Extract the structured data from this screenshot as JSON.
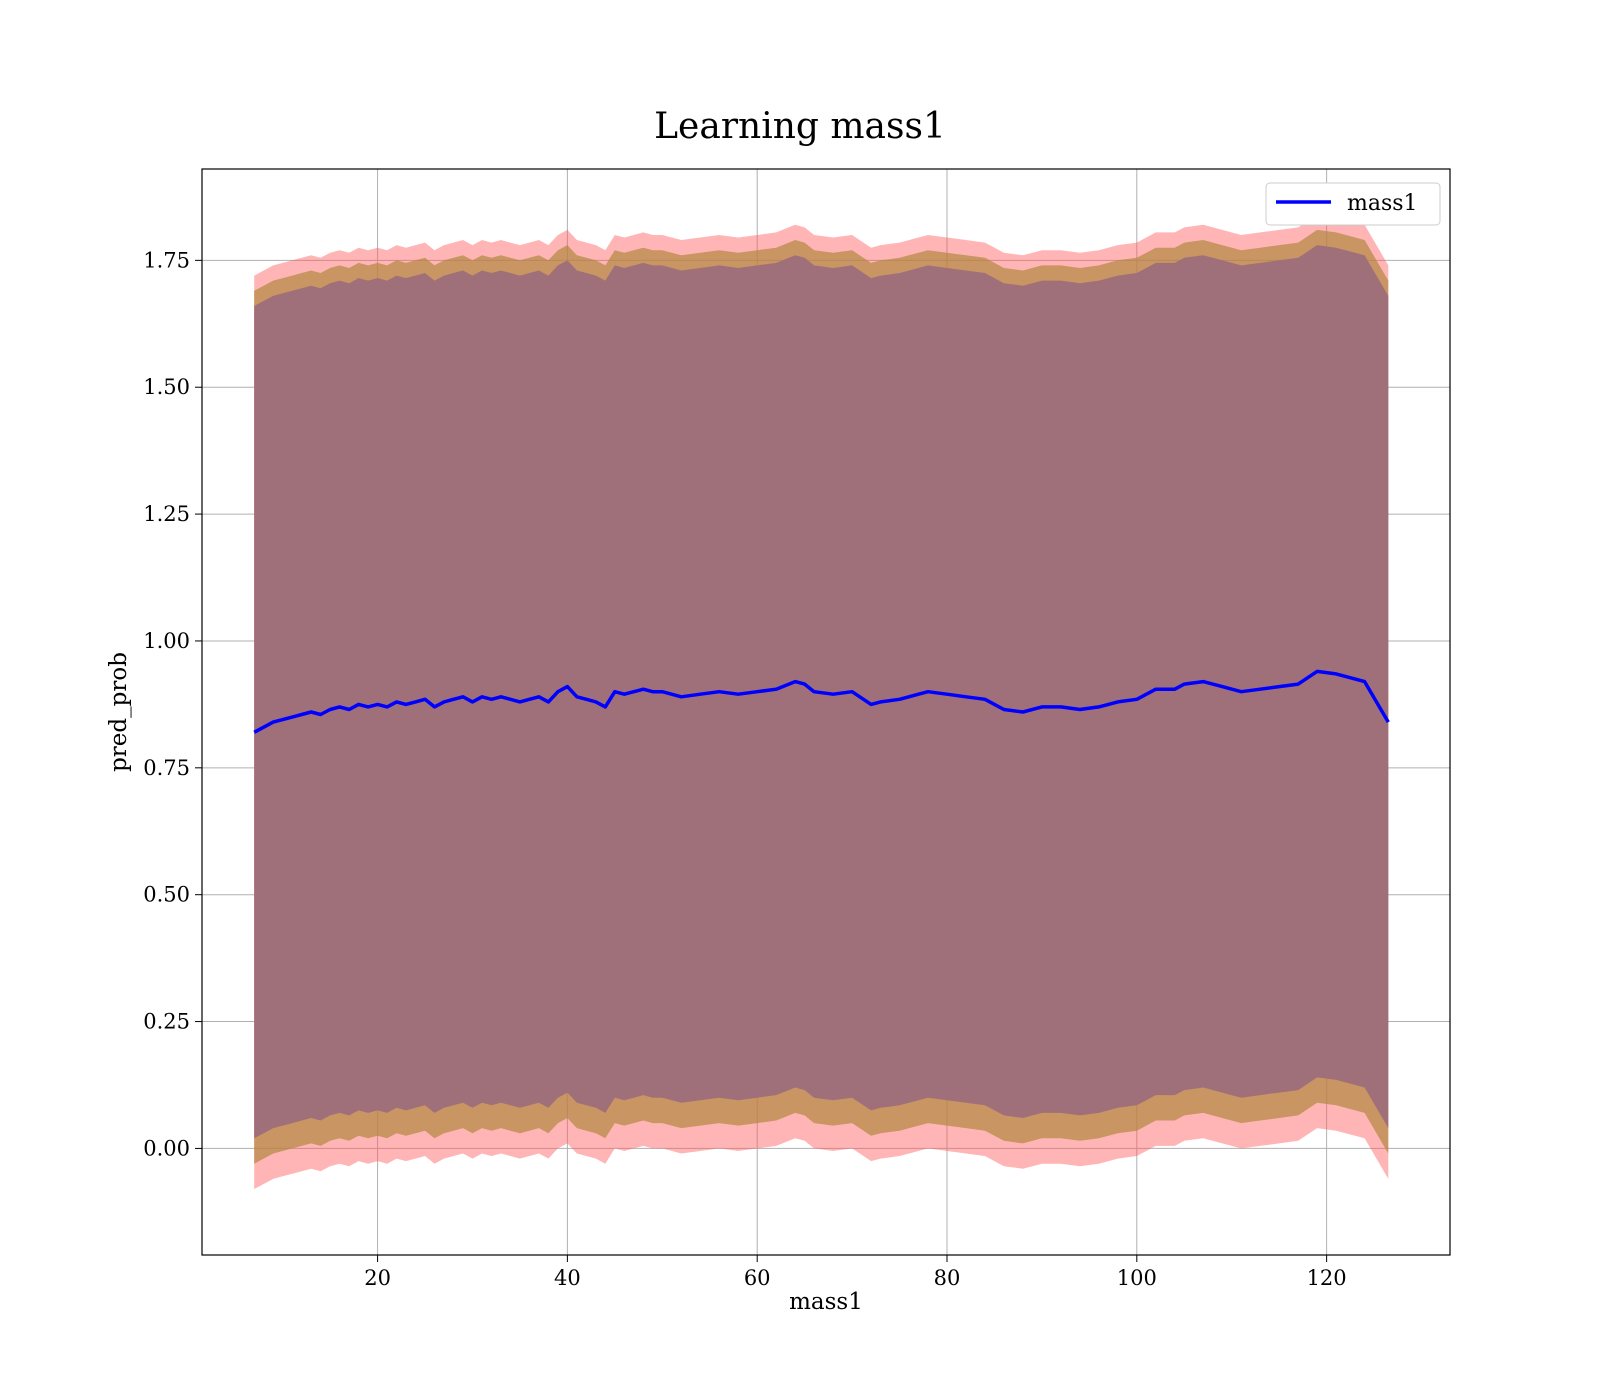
{
  "chart_data": {
    "type": "line",
    "title": "Learning mass1",
    "xlabel": "mass1",
    "ylabel": "pred_prob",
    "xlim": [
      1.5,
      133
    ],
    "ylim": [
      -0.21,
      1.93
    ],
    "xticks": [
      20,
      40,
      60,
      80,
      100,
      120
    ],
    "yticks": [
      0.0,
      0.25,
      0.5,
      0.75,
      1.0,
      1.25,
      1.5,
      1.75
    ],
    "ytick_labels": [
      "0.00",
      "0.25",
      "0.50",
      "0.75",
      "1.00",
      "1.25",
      "1.50",
      "1.75"
    ],
    "grid": true,
    "legend": {
      "position": "top-right",
      "entries": [
        "mass1"
      ]
    },
    "colors": {
      "line": "#0000ff",
      "band_outer": "#ff5a5a",
      "band_mid": "#b08840",
      "band_inner": "#7a4a8a",
      "band_fill": "#a0707a"
    },
    "series": [
      {
        "name": "mass1",
        "x": [
          7,
          8,
          9,
          10,
          11,
          12,
          13,
          14,
          15,
          16,
          17,
          18,
          19,
          20,
          21,
          22,
          23,
          24,
          25,
          26,
          27,
          28,
          29,
          30,
          31,
          32,
          33,
          34,
          35,
          36,
          37,
          38,
          39,
          40,
          41,
          42,
          43,
          44,
          45,
          46,
          47,
          48,
          49,
          50,
          52,
          54,
          56,
          58,
          60,
          62,
          64,
          65,
          66,
          68,
          70,
          72,
          73,
          75,
          77,
          78,
          80,
          82,
          84,
          86,
          88,
          90,
          92,
          94,
          96,
          98,
          100,
          102,
          104,
          105,
          107,
          109,
          111,
          113,
          115,
          117,
          119,
          121,
          124,
          126.5
        ],
        "y": [
          0.82,
          0.83,
          0.84,
          0.845,
          0.85,
          0.855,
          0.86,
          0.855,
          0.865,
          0.87,
          0.865,
          0.875,
          0.87,
          0.875,
          0.87,
          0.88,
          0.875,
          0.88,
          0.885,
          0.87,
          0.88,
          0.885,
          0.89,
          0.88,
          0.89,
          0.885,
          0.89,
          0.885,
          0.88,
          0.885,
          0.89,
          0.88,
          0.9,
          0.91,
          0.89,
          0.885,
          0.88,
          0.87,
          0.9,
          0.895,
          0.9,
          0.905,
          0.9,
          0.9,
          0.89,
          0.895,
          0.9,
          0.895,
          0.9,
          0.905,
          0.92,
          0.915,
          0.9,
          0.895,
          0.9,
          0.875,
          0.88,
          0.885,
          0.895,
          0.9,
          0.895,
          0.89,
          0.885,
          0.865,
          0.86,
          0.87,
          0.87,
          0.865,
          0.87,
          0.88,
          0.885,
          0.905,
          0.905,
          0.915,
          0.92,
          0.91,
          0.9,
          0.905,
          0.91,
          0.915,
          0.94,
          0.935,
          0.92,
          0.84
        ],
        "band_outer_half_width": 0.9,
        "band_mid_half_width": 0.87,
        "band_inner_half_width": 0.84
      }
    ]
  }
}
